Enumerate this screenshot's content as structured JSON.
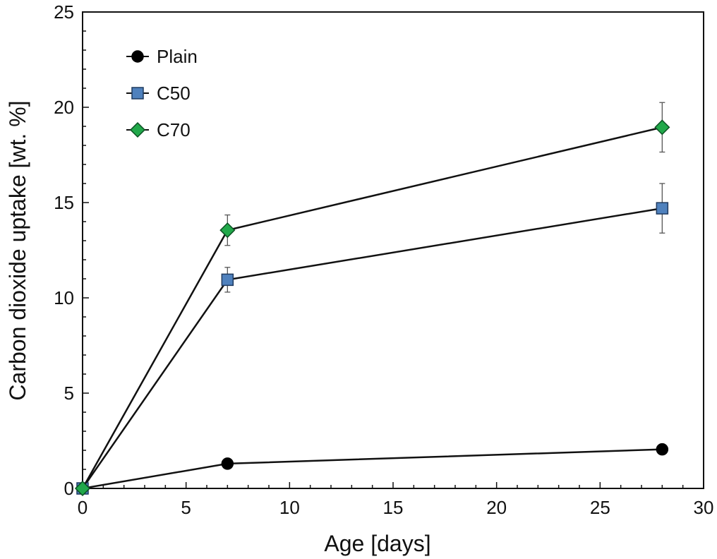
{
  "chart_data": {
    "type": "line",
    "xlabel": "Age [days]",
    "ylabel": "Carbon dioxide uptake [wt. %]",
    "xlim": [
      0,
      30
    ],
    "ylim": [
      0,
      25
    ],
    "x_ticks": [
      "0",
      "5",
      "10",
      "15",
      "20",
      "25",
      "30"
    ],
    "y_ticks": [
      "0",
      "5",
      "10",
      "15",
      "20",
      "25"
    ],
    "grid": false,
    "legend_position": "top-left",
    "series": [
      {
        "name": "Plain",
        "marker": "circle",
        "color": "#000000",
        "x": [
          0,
          7,
          28
        ],
        "y": [
          0,
          1.3,
          2.05
        ],
        "err": [
          0,
          0,
          0
        ]
      },
      {
        "name": "C50",
        "marker": "square",
        "color": "#4F81BD",
        "x": [
          0,
          7,
          28
        ],
        "y": [
          0,
          10.95,
          14.7
        ],
        "err": [
          0,
          0.65,
          1.3
        ]
      },
      {
        "name": "C70",
        "marker": "diamond",
        "color": "#21A84A",
        "x": [
          0,
          7,
          28
        ],
        "y": [
          0,
          13.55,
          18.95
        ],
        "err": [
          0,
          0.8,
          1.3
        ]
      }
    ]
  }
}
